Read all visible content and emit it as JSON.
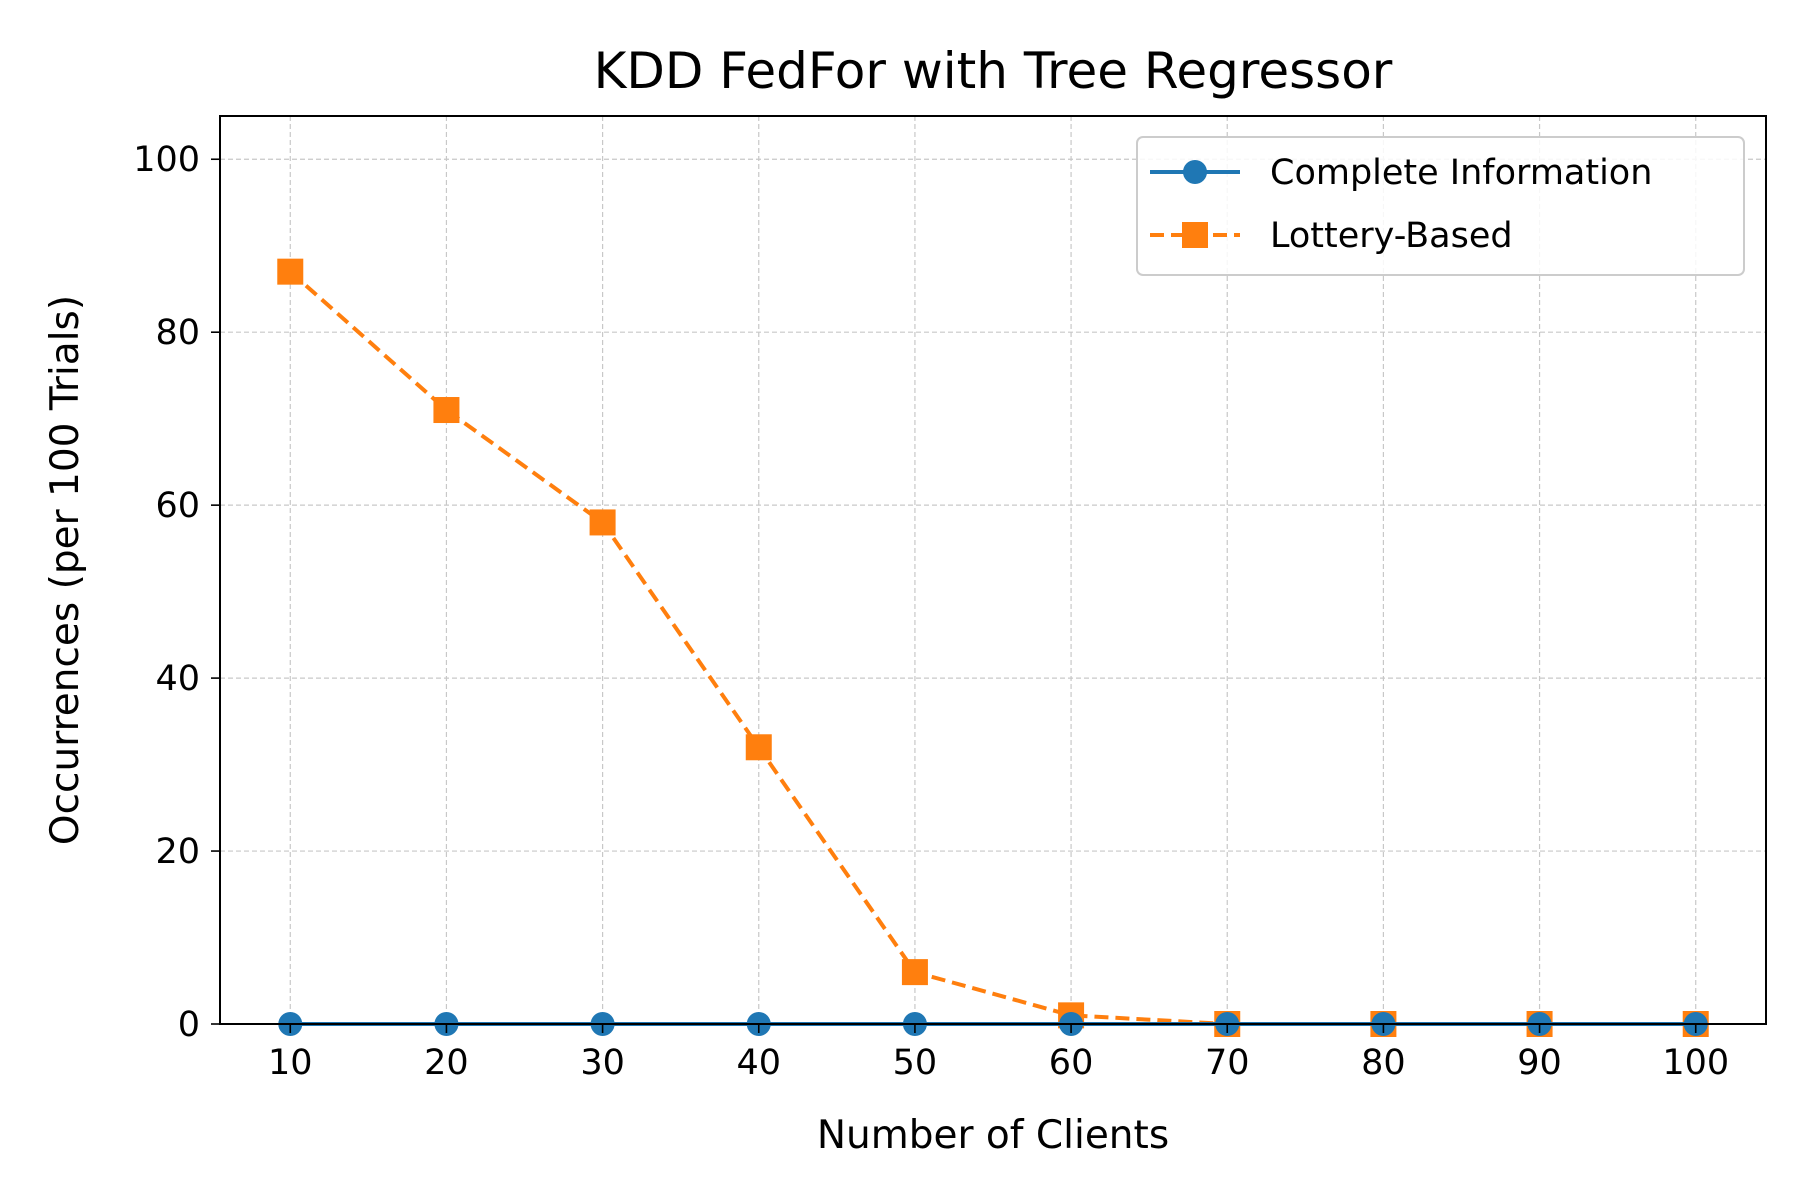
{
  "chart_data": {
    "type": "line",
    "title": "KDD FedFor with Tree Regressor",
    "xlabel": "Number of Clients",
    "ylabel": "Occurrences (per 100 Trials)",
    "x": [
      10,
      20,
      30,
      40,
      50,
      60,
      70,
      80,
      90,
      100
    ],
    "xticks": [
      "10",
      "20",
      "30",
      "40",
      "50",
      "60",
      "70",
      "80",
      "90",
      "100"
    ],
    "yticks": [
      "0",
      "20",
      "40",
      "60",
      "80",
      "100"
    ],
    "xlim": [
      5.5,
      104.5
    ],
    "ylim": [
      0,
      105
    ],
    "grid": true,
    "legend_position": "top-right",
    "series": [
      {
        "name": "Complete Information",
        "values": [
          0,
          0,
          0,
          0,
          0,
          0,
          0,
          0,
          0,
          0
        ],
        "color": "#1f77b4",
        "marker": "circle",
        "line_style": "solid"
      },
      {
        "name": "Lottery-Based",
        "values": [
          87,
          71,
          58,
          32,
          6,
          1,
          0,
          0,
          0,
          0
        ],
        "color": "#ff7f0e",
        "marker": "square",
        "line_style": "dashed"
      }
    ]
  }
}
